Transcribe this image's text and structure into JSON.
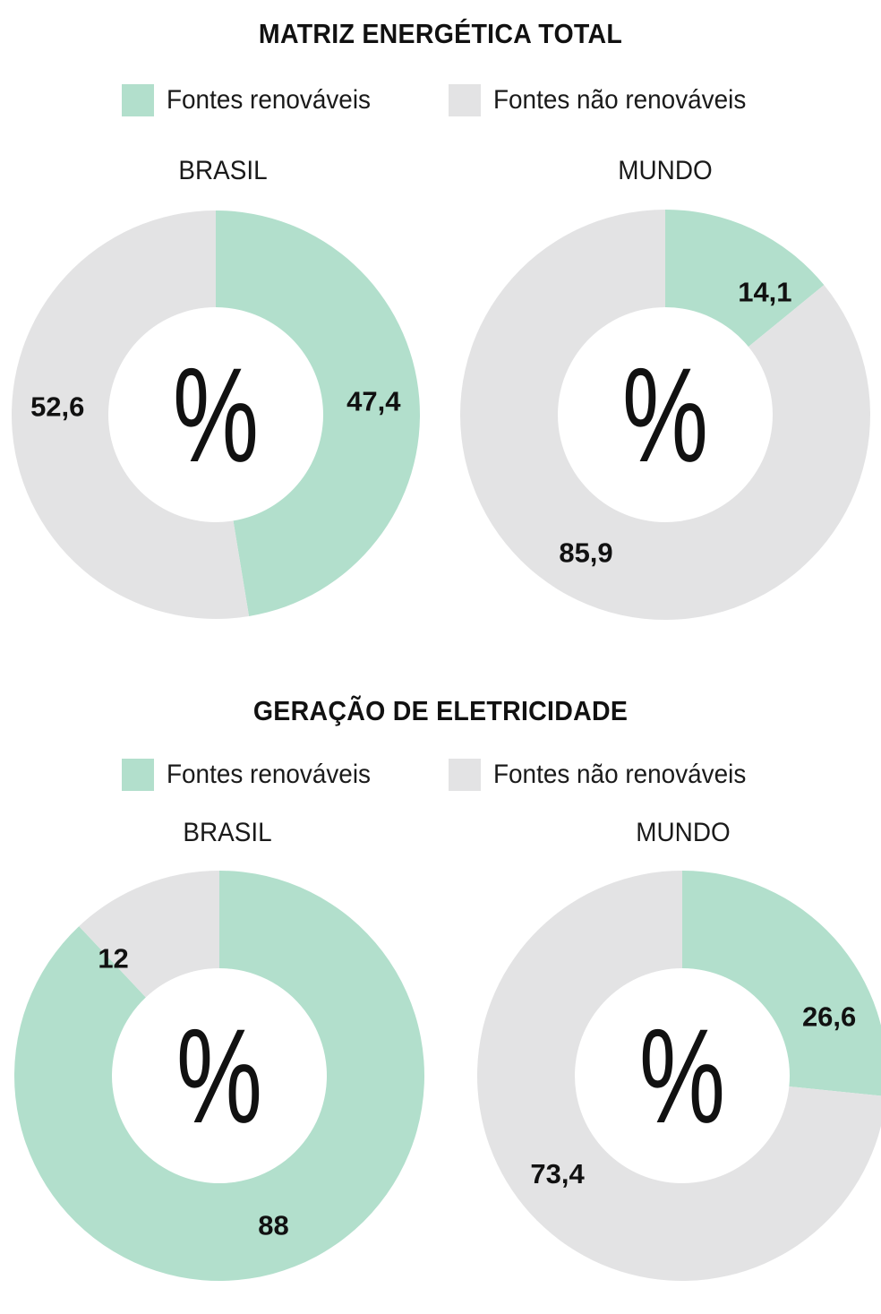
{
  "colors": {
    "renewable": "#b2dfcc",
    "nonrenewable": "#e3e3e4",
    "text": "#111111"
  },
  "legend": {
    "renewable": "Fontes renováveis",
    "nonrenewable": "Fontes não renováveis"
  },
  "center_symbol": "%",
  "sections": [
    {
      "title": "MATRIZ ENERGÉTICA TOTAL",
      "regions": [
        "BRASIL",
        "MUNDO"
      ]
    },
    {
      "title": "GERAÇÃO DE ELETRICIDADE",
      "regions": [
        "BRASIL",
        "MUNDO"
      ]
    }
  ],
  "chart_data": [
    {
      "type": "pie",
      "title": "MATRIZ ENERGÉTICA TOTAL",
      "subtitle": "BRASIL",
      "categories": [
        "Fontes renováveis",
        "Fontes não renováveis"
      ],
      "values": [
        47.4,
        52.6
      ],
      "labels": [
        "47,4",
        "52,6"
      ]
    },
    {
      "type": "pie",
      "title": "MATRIZ ENERGÉTICA TOTAL",
      "subtitle": "MUNDO",
      "categories": [
        "Fontes renováveis",
        "Fontes não renováveis"
      ],
      "values": [
        14.1,
        85.9
      ],
      "labels": [
        "14,1",
        "85,9"
      ]
    },
    {
      "type": "pie",
      "title": "GERAÇÃO DE ELETRICIDADE",
      "subtitle": "BRASIL",
      "categories": [
        "Fontes renováveis",
        "Fontes não renováveis"
      ],
      "values": [
        88,
        12
      ],
      "labels": [
        "88",
        "12"
      ]
    },
    {
      "type": "pie",
      "title": "GERAÇÃO DE ELETRICIDADE",
      "subtitle": "MUNDO",
      "categories": [
        "Fontes renováveis",
        "Fontes não renováveis"
      ],
      "values": [
        26.6,
        73.4
      ],
      "labels": [
        "26,6",
        "73,4"
      ]
    }
  ]
}
